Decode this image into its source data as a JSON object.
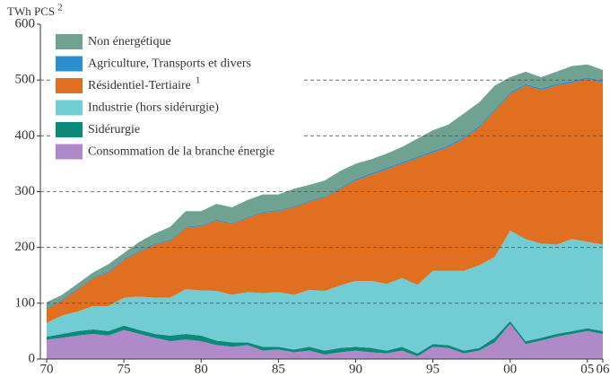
{
  "chart_data": {
    "type": "stacked_area",
    "y_label": "TWh PCS",
    "y_label_note": "2",
    "x": [
      1970,
      1971,
      1972,
      1973,
      1974,
      1975,
      1976,
      1977,
      1978,
      1979,
      1980,
      1981,
      1982,
      1983,
      1984,
      1985,
      1986,
      1987,
      1988,
      1989,
      1990,
      1991,
      1992,
      1993,
      1994,
      1995,
      1996,
      1997,
      1998,
      1999,
      2000,
      2001,
      2002,
      2003,
      2004,
      2005,
      2006
    ],
    "xlim": [
      1970,
      2006
    ],
    "xticks": [
      {
        "value": 1970,
        "label": "70"
      },
      {
        "value": 1975,
        "label": "75"
      },
      {
        "value": 1980,
        "label": "80"
      },
      {
        "value": 1985,
        "label": "85"
      },
      {
        "value": 1990,
        "label": "90"
      },
      {
        "value": 1995,
        "label": "95"
      },
      {
        "value": 2000,
        "label": "00"
      },
      {
        "value": 2005,
        "label": "05"
      },
      {
        "value": 2006,
        "label": "06"
      }
    ],
    "ylim": [
      0,
      600
    ],
    "yticks": [
      0,
      100,
      200,
      300,
      400,
      500,
      600
    ],
    "grid": true,
    "legend": "upper left",
    "series": [
      {
        "name": "Consommation de la branche énergie",
        "color": "#b08ac8",
        "values": [
          35,
          38,
          42,
          45,
          42,
          52,
          45,
          38,
          32,
          35,
          32,
          25,
          22,
          25,
          15,
          17,
          12,
          15,
          8,
          12,
          15,
          12,
          10,
          15,
          5,
          22,
          20,
          10,
          15,
          30,
          63,
          27,
          33,
          40,
          45,
          50,
          45
        ]
      },
      {
        "name": "Sidérurgie",
        "color": "#0b8a7a",
        "values": [
          5,
          7,
          8,
          8,
          8,
          8,
          7,
          7,
          10,
          10,
          10,
          8,
          8,
          5,
          7,
          5,
          5,
          7,
          7,
          8,
          7,
          8,
          5,
          7,
          5,
          5,
          5,
          5,
          5,
          8,
          5,
          5,
          5,
          5,
          5,
          5,
          5
        ]
      },
      {
        "name": "Industrie (hors sidérurgie)",
        "color": "#72ccd4",
        "values": [
          25,
          33,
          35,
          42,
          45,
          50,
          60,
          65,
          68,
          80,
          81,
          89,
          85,
          90,
          96,
          98,
          98,
          102,
          107,
          112,
          118,
          120,
          120,
          123,
          123,
          131,
          133,
          143,
          148,
          145,
          162,
          183,
          169,
          160,
          165,
          155,
          155
        ]
      },
      {
        "name": "Résidentiel-Tertiaire",
        "note": "1",
        "color": "#e0701f",
        "values": [
          25,
          27,
          40,
          50,
          60,
          68,
          80,
          95,
          102,
          110,
          115,
          126,
          127,
          133,
          144,
          145,
          157,
          158,
          168,
          173,
          180,
          190,
          205,
          205,
          227,
          212,
          222,
          237,
          247,
          262,
          245,
          275,
          275,
          285,
          280,
          292,
          290
        ]
      },
      {
        "name": "Agriculture, Transports et divers",
        "color": "#2a8fd0",
        "values": [
          2,
          2,
          2,
          2,
          2,
          2,
          2,
          2,
          2,
          2,
          2,
          2,
          2,
          2,
          2,
          2,
          2,
          2,
          2,
          2,
          3,
          3,
          3,
          3,
          3,
          3,
          3,
          3,
          3,
          3,
          3,
          3,
          3,
          3,
          3,
          3,
          3
        ]
      },
      {
        "name": "Non énergétique",
        "color": "#6fa290",
        "values": [
          10,
          8,
          8,
          8,
          13,
          10,
          16,
          18,
          23,
          28,
          25,
          28,
          28,
          30,
          31,
          28,
          31,
          28,
          28,
          30,
          27,
          25,
          25,
          27,
          32,
          37,
          37,
          42,
          42,
          42,
          27,
          22,
          20,
          22,
          27,
          23,
          20
        ]
      }
    ]
  }
}
